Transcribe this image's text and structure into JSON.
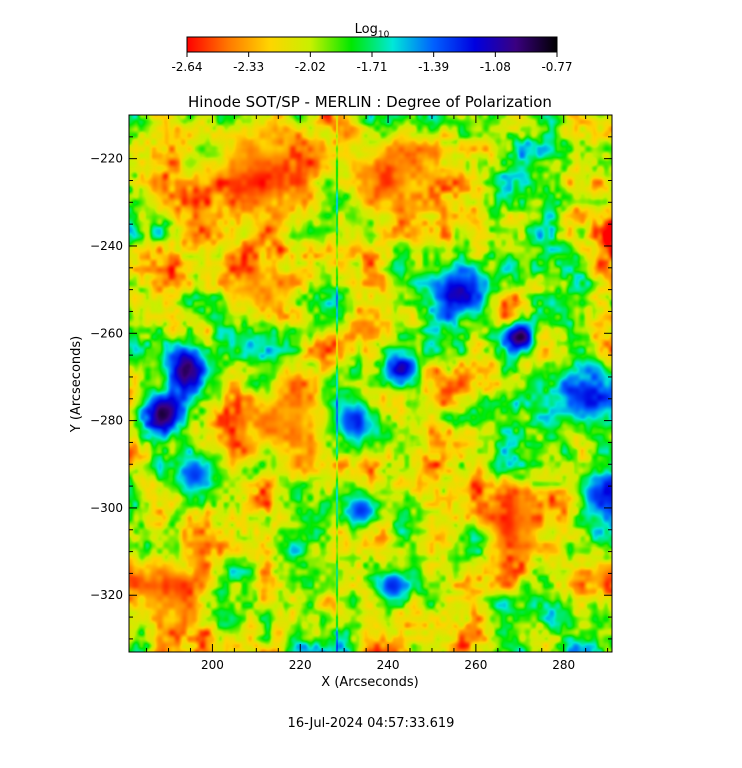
{
  "chart_data": {
    "type": "heatmap",
    "title": "Hinode SOT/SP - MERLIN : Degree of Polarization",
    "xlabel": "X (Arcseconds)",
    "ylabel": "Y (Arcseconds)",
    "xlim": [
      181,
      291
    ],
    "ylim": [
      -333,
      -210
    ],
    "x_ticks": [
      200,
      220,
      240,
      260,
      280
    ],
    "y_ticks": [
      -220,
      -240,
      -260,
      -280,
      -300,
      -320
    ],
    "colorbar": {
      "label_base": "Log",
      "label_sub": "10",
      "range": [
        -2.64,
        -0.77
      ],
      "ticks": [
        "-2.64",
        "-2.33",
        "-2.02",
        "-1.71",
        "-1.39",
        "-1.08",
        "-0.77"
      ],
      "colormap": [
        "#ff0000",
        "#ff7800",
        "#ffd400",
        "#c8f000",
        "#00e800",
        "#00e8d8",
        "#0060ff",
        "#0000e0",
        "#3a0080",
        "#000000"
      ]
    },
    "features": [
      {
        "x": 194,
        "y": -268,
        "value": -0.9,
        "spread": 5
      },
      {
        "x": 189,
        "y": -278,
        "value": -1.0,
        "spread": 5
      },
      {
        "x": 256,
        "y": -250,
        "value": -1.1,
        "spread": 6
      },
      {
        "x": 270,
        "y": -261,
        "value": -0.95,
        "spread": 4
      },
      {
        "x": 243,
        "y": -268,
        "value": -1.05,
        "spread": 4
      },
      {
        "x": 234,
        "y": -300,
        "value": -1.2,
        "spread": 5
      },
      {
        "x": 285,
        "y": -275,
        "value": -1.2,
        "spread": 7
      },
      {
        "x": 288,
        "y": -297,
        "value": -1.25,
        "spread": 6
      },
      {
        "x": 232,
        "y": -280,
        "value": -1.3,
        "spread": 5
      },
      {
        "x": 196,
        "y": -292,
        "value": -1.3,
        "spread": 5
      },
      {
        "x": 241,
        "y": -318,
        "value": -1.35,
        "spread": 4
      },
      {
        "x": 210,
        "y": -222,
        "value": -2.55,
        "spread": 12
      },
      {
        "x": 240,
        "y": -225,
        "value": -2.5,
        "spread": 10
      },
      {
        "x": 190,
        "y": -318,
        "value": -2.5,
        "spread": 7
      },
      {
        "x": 217,
        "y": -280,
        "value": -2.35,
        "spread": 10
      },
      {
        "x": 268,
        "y": -304,
        "value": -2.45,
        "spread": 7
      },
      {
        "x": 210,
        "y": -250,
        "value": -2.3,
        "spread": 6
      }
    ]
  },
  "footer": {
    "timestamp": "16-Jul-2024 04:57:33.619"
  }
}
